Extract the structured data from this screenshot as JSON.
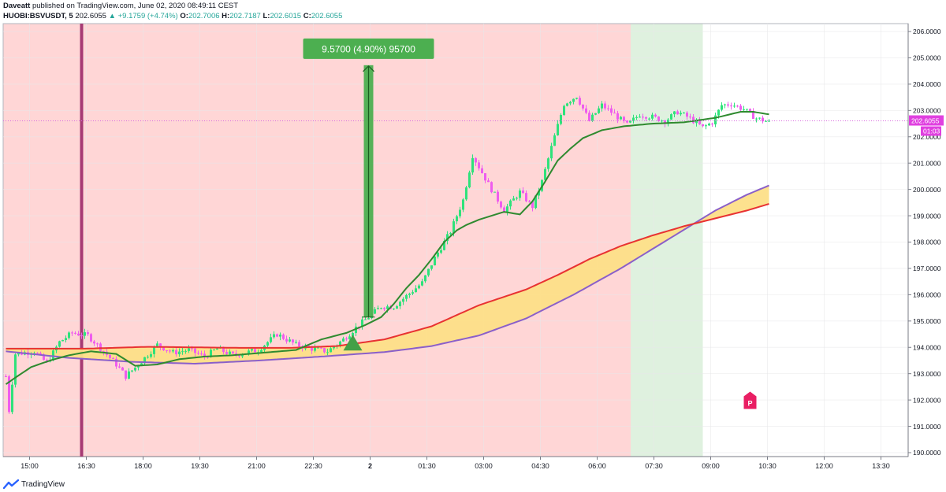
{
  "header": {
    "author": "Daveatt",
    "published": "published on TradingView.com, June 02, 2020 08:49:11 CEST",
    "symbol": "HUOBI:BSVUSDT, 5",
    "last": "202.6055",
    "change": "▲ +9.1759 (+4.74%)",
    "ohlc": [
      {
        "k": "O:",
        "v": "202.7006"
      },
      {
        "k": "H:",
        "v": "202.7187"
      },
      {
        "k": "L:",
        "v": "202.6015"
      },
      {
        "k": "C:",
        "v": "202.6055"
      }
    ]
  },
  "footer": {
    "brand": "TradingView",
    "logo_icon": "tradingview-logo-icon"
  },
  "colors": {
    "up": "#2ee27a",
    "down": "#ef5dee",
    "bg_red": "#ffd6d6",
    "bg_green": "#dff1df",
    "ema_fast": "#2f8a2f",
    "ema_mid": "#e83232",
    "ema_slow": "#8a5fc9",
    "cloud": "#fddf88",
    "measure": "#4caf50",
    "price_line": "#d96ae0",
    "label_bg": "#e040e0",
    "p_marker": "#e91e63"
  },
  "chart_data": {
    "type": "candlestick",
    "symbol": "HUOBI:BSVUSDT",
    "interval": "5",
    "ylim": [
      189.85,
      206.3
    ],
    "y_ticks": [
      "190.0000",
      "191.0000",
      "192.0000",
      "193.0000",
      "194.0000",
      "195.0000",
      "196.0000",
      "197.0000",
      "198.0000",
      "199.0000",
      "200.0000",
      "201.0000",
      "202.0000",
      "203.0000",
      "204.0000",
      "205.0000",
      "206.0000"
    ],
    "x_ticks": [
      "15:00",
      "16:30",
      "18:00",
      "19:30",
      "21:00",
      "22:30",
      "2",
      "01:30",
      "03:00",
      "04:30",
      "06:00",
      "07:30",
      "09:00",
      "10:30",
      "12:00",
      "13:30"
    ],
    "x_tick_bold": "2",
    "start_time": "14:25",
    "bar_minutes": 5,
    "last_price": 202.6055,
    "last_price_label": "202.6055",
    "countdown_label": "01:03",
    "background_zones": [
      {
        "from": "14:25",
        "to": "07:00",
        "color": "red"
      },
      {
        "from": "07:00",
        "to": "08:50",
        "color": "green"
      }
    ],
    "vertical_marker_time": "16:25",
    "measurement": {
      "label": "9.5700 (4.90%) 95700",
      "from_price": 195.15,
      "to_price": 204.72,
      "time": "00:00"
    },
    "signal_triangle": {
      "time": "23:35",
      "price": 194.0
    },
    "p_marker": {
      "label": "P",
      "time": "10:05",
      "price": 191.9
    },
    "ema_fast": [
      [
        0,
        192.6
      ],
      [
        3,
        192.85
      ],
      [
        8,
        193.25
      ],
      [
        14,
        193.5
      ],
      [
        20,
        193.7
      ],
      [
        27,
        193.85
      ],
      [
        35,
        193.75
      ],
      [
        41,
        193.3
      ],
      [
        48,
        193.35
      ],
      [
        55,
        193.55
      ],
      [
        63,
        193.65
      ],
      [
        72,
        193.7
      ],
      [
        82,
        193.8
      ],
      [
        92,
        193.9
      ],
      [
        100,
        194.3
      ],
      [
        108,
        194.55
      ],
      [
        114,
        194.85
      ],
      [
        119,
        195.15
      ],
      [
        123,
        195.65
      ],
      [
        127,
        196.25
      ],
      [
        131,
        196.75
      ],
      [
        135,
        197.35
      ],
      [
        139,
        198.0
      ],
      [
        143,
        198.45
      ],
      [
        146,
        198.65
      ],
      [
        150,
        198.85
      ],
      [
        154,
        199.0
      ],
      [
        158,
        199.15
      ],
      [
        163,
        199.05
      ],
      [
        167,
        199.55
      ],
      [
        171,
        200.3
      ],
      [
        175,
        201.1
      ],
      [
        179,
        201.55
      ],
      [
        183,
        201.95
      ],
      [
        189,
        202.25
      ],
      [
        196,
        202.4
      ],
      [
        205,
        202.5
      ],
      [
        215,
        202.55
      ],
      [
        225,
        202.72
      ],
      [
        233,
        202.95
      ],
      [
        237,
        202.95
      ],
      [
        242,
        202.85
      ]
    ],
    "ema_mid": [
      [
        0,
        193.95
      ],
      [
        25,
        193.95
      ],
      [
        45,
        194.02
      ],
      [
        60,
        194.0
      ],
      [
        75,
        193.98
      ],
      [
        90,
        193.98
      ],
      [
        105,
        194.05
      ],
      [
        120,
        194.3
      ],
      [
        135,
        194.8
      ],
      [
        150,
        195.6
      ],
      [
        165,
        196.2
      ],
      [
        175,
        196.75
      ],
      [
        185,
        197.35
      ],
      [
        195,
        197.85
      ],
      [
        205,
        198.25
      ],
      [
        215,
        198.6
      ],
      [
        225,
        198.9
      ],
      [
        235,
        199.2
      ],
      [
        242,
        199.45
      ]
    ],
    "ema_slow": [
      [
        0,
        193.85
      ],
      [
        20,
        193.6
      ],
      [
        40,
        193.45
      ],
      [
        60,
        193.38
      ],
      [
        80,
        193.5
      ],
      [
        100,
        193.65
      ],
      [
        120,
        193.82
      ],
      [
        135,
        194.05
      ],
      [
        150,
        194.45
      ],
      [
        165,
        195.1
      ],
      [
        180,
        196.0
      ],
      [
        195,
        197.0
      ],
      [
        210,
        198.1
      ],
      [
        225,
        199.2
      ],
      [
        235,
        199.8
      ],
      [
        242,
        200.15
      ]
    ],
    "anchors": [
      [
        0,
        192.9
      ],
      [
        1,
        191.6
      ],
      [
        3,
        193.75
      ],
      [
        9,
        193.85
      ],
      [
        13,
        193.4
      ],
      [
        17,
        194.2
      ],
      [
        21,
        194.55
      ],
      [
        26,
        194.45
      ],
      [
        31,
        193.85
      ],
      [
        35,
        193.35
      ],
      [
        38,
        192.9
      ],
      [
        42,
        193.35
      ],
      [
        48,
        194.1
      ],
      [
        53,
        193.8
      ],
      [
        58,
        193.9
      ],
      [
        63,
        193.65
      ],
      [
        67,
        193.95
      ],
      [
        72,
        193.7
      ],
      [
        80,
        193.9
      ],
      [
        86,
        194.5
      ],
      [
        92,
        194.1
      ],
      [
        97,
        193.95
      ],
      [
        102,
        193.85
      ],
      [
        107,
        194.3
      ],
      [
        111,
        194.75
      ],
      [
        115,
        195.15
      ],
      [
        119,
        195.55
      ],
      [
        123,
        195.55
      ],
      [
        127,
        195.95
      ],
      [
        132,
        196.45
      ],
      [
        136,
        197.4
      ],
      [
        141,
        198.4
      ],
      [
        145,
        199.6
      ],
      [
        148,
        201.3
      ],
      [
        153,
        200.2
      ],
      [
        158,
        199.2
      ],
      [
        163,
        199.9
      ],
      [
        167,
        199.35
      ],
      [
        170,
        200.3
      ],
      [
        173,
        201.6
      ],
      [
        177,
        203.25
      ],
      [
        181,
        203.55
      ],
      [
        185,
        202.6
      ],
      [
        189,
        203.2
      ],
      [
        193,
        202.85
      ],
      [
        197,
        202.45
      ],
      [
        201,
        202.85
      ],
      [
        205,
        202.75
      ],
      [
        209,
        202.6
      ],
      [
        213,
        202.95
      ],
      [
        217,
        202.7
      ],
      [
        221,
        202.35
      ],
      [
        224,
        202.55
      ],
      [
        227,
        203.2
      ],
      [
        230,
        203.25
      ],
      [
        234,
        203.05
      ],
      [
        238,
        202.7
      ],
      [
        241,
        202.6
      ]
    ]
  }
}
